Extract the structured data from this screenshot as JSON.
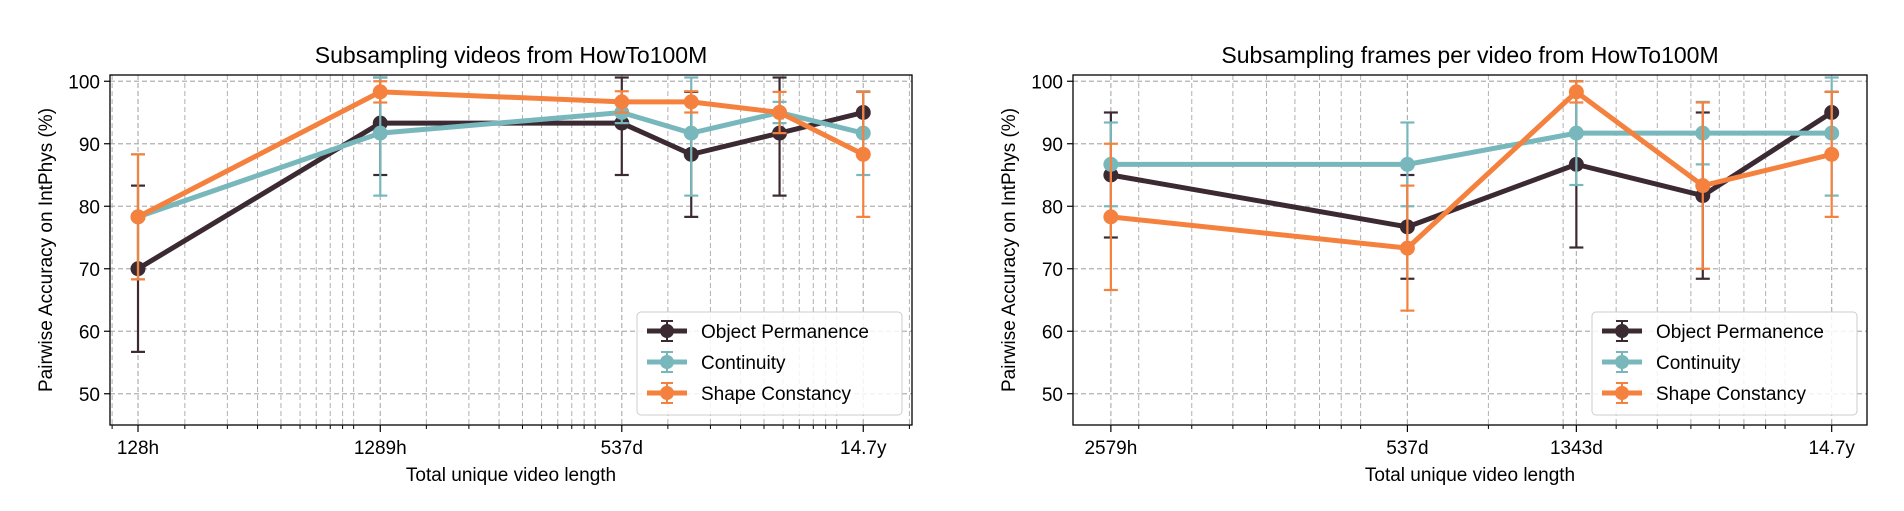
{
  "chart_data": [
    {
      "type": "line",
      "title": "Subsampling videos from HowTo100M",
      "xlabel": "Total unique video length",
      "ylabel": "Pairwise Accuracy on IntPhys (%)",
      "xscale": "log",
      "x_hours": [
        128,
        1289,
        12888,
        24990,
        58000,
        128800
      ],
      "xticks": [
        {
          "value": 128,
          "label": "128h"
        },
        {
          "value": 1289,
          "label": "1289h"
        },
        {
          "value": 12888,
          "label": "537d"
        },
        {
          "value": 128800,
          "label": "14.7y"
        }
      ],
      "xlim_hours": [
        98,
        205000
      ],
      "ylim": [
        45,
        101
      ],
      "yticks": [
        50,
        60,
        70,
        80,
        90,
        100
      ],
      "grid": true,
      "legend_position": "lower-right",
      "series": [
        {
          "name": "Object Permanence",
          "color": "#3b2a32",
          "values": [
            70,
            93.3,
            93.3,
            88.3,
            91.7,
            95
          ],
          "err": [
            13.3,
            8.3,
            8.3,
            10,
            10,
            3.3
          ]
        },
        {
          "name": "Continuity",
          "color": "#78b8bc",
          "values": [
            78.3,
            91.7,
            95,
            91.7,
            95,
            91.7
          ],
          "err": [
            10,
            10,
            1.7,
            10,
            1.7,
            6.7
          ]
        },
        {
          "name": "Shape Constancy",
          "color": "#f5813e",
          "values": [
            78.3,
            98.3,
            96.7,
            96.7,
            95,
            88.3
          ],
          "err": [
            10,
            1.7,
            1.7,
            1.7,
            3.3,
            10
          ]
        }
      ]
    },
    {
      "type": "line",
      "title": "Subsampling frames per video from HowTo100M",
      "xlabel": "Total unique video length",
      "ylabel": "Pairwise Accuracy on IntPhys (%)",
      "xscale": "log",
      "x_hours": [
        2579,
        12888,
        32232,
        64000,
        128800
      ],
      "xticks": [
        {
          "value": 2579,
          "label": "2579h"
        },
        {
          "value": 12888,
          "label": "537d"
        },
        {
          "value": 32232,
          "label": "1343d"
        },
        {
          "value": 128800,
          "label": "14.7y"
        }
      ],
      "xlim_hours": [
        2100,
        156000
      ],
      "ylim": [
        45,
        101
      ],
      "yticks": [
        50,
        60,
        70,
        80,
        90,
        100
      ],
      "grid": true,
      "legend_position": "lower-right",
      "series": [
        {
          "name": "Object Permanence",
          "color": "#3b2a32",
          "values": [
            85,
            76.7,
            86.7,
            81.7,
            95
          ],
          "err": [
            10,
            8.3,
            13.3,
            13.3,
            3.3
          ]
        },
        {
          "name": "Continuity",
          "color": "#78b8bc",
          "values": [
            86.7,
            86.7,
            91.7,
            91.7,
            91.7
          ],
          "err": [
            6.7,
            6.7,
            8.3,
            5,
            10
          ]
        },
        {
          "name": "Shape Constancy",
          "color": "#f5813e",
          "values": [
            78.3,
            73.3,
            98.3,
            83.3,
            88.3
          ],
          "err": [
            11.7,
            10,
            1.7,
            13.3,
            10
          ]
        }
      ]
    }
  ]
}
